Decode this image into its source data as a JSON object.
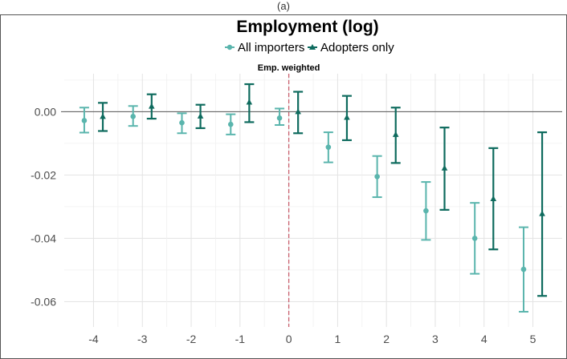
{
  "figure": {
    "top_caption": "(a)"
  },
  "chart_data": {
    "type": "errorbar",
    "title": "Employment (log)",
    "xlabel": "",
    "ylabel": "",
    "x": [
      -4,
      -3,
      -2,
      -1,
      0,
      1,
      2,
      3,
      4,
      5
    ],
    "x_tick_labels": [
      "-4",
      "-3",
      "-2",
      "-1",
      "0",
      "1",
      "2",
      "3",
      "4",
      "5"
    ],
    "y_ticks": [
      0.0,
      -0.02,
      -0.04,
      -0.06
    ],
    "y_tick_labels": [
      "0.00",
      "-0.02",
      "-0.04",
      "-0.06"
    ],
    "ylim": [
      -0.068,
      0.012
    ],
    "xlim": [
      -4.6,
      5.6
    ],
    "grid": true,
    "legend_position": "top",
    "reference_line": {
      "x": 0,
      "label": "Emp. weighted",
      "color": "#c9606e"
    },
    "zero_line": {
      "y": 0,
      "color": "#555555"
    },
    "series": [
      {
        "name": "All importers",
        "marker": "circle",
        "color": "#5ab5ad",
        "estimate": [
          -0.0028,
          -0.0015,
          -0.0035,
          -0.004,
          -0.002,
          -0.0112,
          -0.0205,
          -0.0313,
          -0.04,
          -0.0498
        ],
        "ci_low": [
          -0.0066,
          -0.0045,
          -0.0068,
          -0.0072,
          -0.0042,
          -0.016,
          -0.027,
          -0.0405,
          -0.0512,
          -0.0632
        ],
        "ci_high": [
          0.0013,
          0.0018,
          -0.0005,
          -0.0008,
          0.001,
          -0.0065,
          -0.014,
          -0.0222,
          -0.0288,
          -0.0365
        ]
      },
      {
        "name": "Adopters only",
        "marker": "triangle",
        "color": "#0e6b5e",
        "estimate": [
          -0.0015,
          0.0017,
          -0.0014,
          0.003,
          0.0,
          -0.0018,
          -0.0072,
          -0.0178,
          -0.0275,
          -0.0322
        ],
        "ci_low": [
          -0.0061,
          -0.0022,
          -0.0052,
          -0.0033,
          -0.0068,
          -0.009,
          -0.0162,
          -0.031,
          -0.0435,
          -0.0582
        ],
        "ci_high": [
          0.0028,
          0.0055,
          0.0022,
          0.0087,
          0.0063,
          0.005,
          0.0013,
          -0.005,
          -0.0115,
          -0.0065
        ]
      }
    ]
  }
}
